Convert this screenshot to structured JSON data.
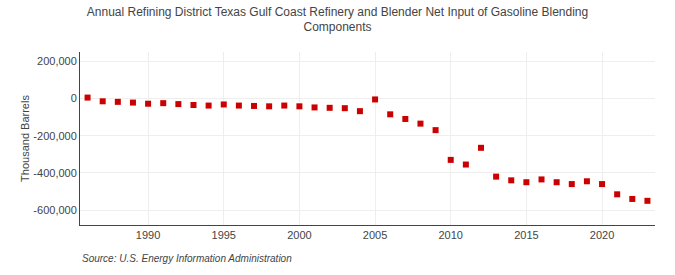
{
  "chart_data": {
    "type": "scatter",
    "title": "Annual Refining District Texas Gulf Coast Refinery and Blender Net Input of Gasoline Blending\nComponents",
    "ylabel": "Thousand Barrels",
    "annotations": [
      "Source: U.S. Energy Information Administration"
    ],
    "x": [
      1986,
      1987,
      1988,
      1989,
      1990,
      1991,
      1992,
      1993,
      1994,
      1995,
      1996,
      1997,
      1998,
      1999,
      2000,
      2001,
      2002,
      2003,
      2004,
      2005,
      2006,
      2007,
      2008,
      2009,
      2010,
      2011,
      2012,
      2013,
      2014,
      2015,
      2016,
      2017,
      2018,
      2019,
      2020,
      2021,
      2022,
      2023
    ],
    "values": [
      5000,
      -15000,
      -18000,
      -22000,
      -28000,
      -25000,
      -30000,
      -35000,
      -38000,
      -32000,
      -38000,
      -40000,
      -42000,
      -38000,
      -42000,
      -48000,
      -50000,
      -52000,
      -68000,
      -5000,
      -85000,
      -110000,
      -135000,
      -170000,
      -330000,
      -355000,
      -265000,
      -420000,
      -440000,
      -450000,
      -435000,
      -450000,
      -460000,
      -445000,
      -460000,
      -515000,
      -540000,
      -550000
    ],
    "color": "#cc0000",
    "marker": "square",
    "xlim": [
      1985.5,
      2023.5
    ],
    "xticks": [
      1990,
      1995,
      2000,
      2005,
      2010,
      2015,
      2020
    ],
    "ylim": [
      -680000,
      250000
    ],
    "yticks": [
      {
        "value": -600000,
        "label": "-600,000"
      },
      {
        "value": -400000,
        "label": "-400,000"
      },
      {
        "value": -200000,
        "label": "-200,000"
      },
      0,
      {
        "value": 200000,
        "label": "200,000"
      }
    ],
    "grid": true
  }
}
